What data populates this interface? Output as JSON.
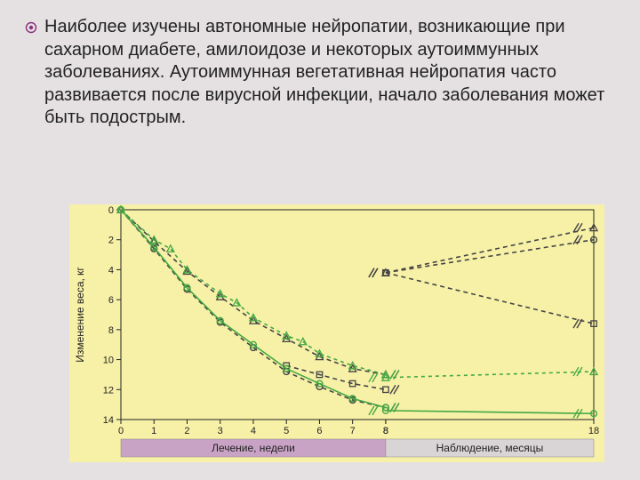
{
  "text": {
    "paragraph": "Наиболее изучены автономные нейропатии, возникающие при сахарном диабете, амилоидозе и некоторых аутоиммунных заболеваниях. Аутоиммунная вегетативная нейропатия часто развивается после вирусной инфекции, начало заболевания может быть подострым."
  },
  "chart": {
    "type": "line",
    "bg_color": "#f7f1a7",
    "plot_bg": "#f7f1a7",
    "axis_color": "#222222",
    "grid_color": "#f7f1a7",
    "tick_fontsize": 11,
    "label_fontsize": 12,
    "y_label": "Изменение веса, кг",
    "x1_label": "Лечение, недели",
    "x2_label": "Наблюдение, месяцы",
    "x1_bar_color": "#c9a3c5",
    "x2_bar_color": "#d9d4d6",
    "y_ticks": [
      0,
      2,
      4,
      6,
      8,
      10,
      12,
      14
    ],
    "x1_ticks": [
      0,
      1,
      2,
      3,
      4,
      5,
      6,
      7,
      8
    ],
    "x2_ticks": [
      8,
      18
    ],
    "ylim": [
      14,
      0
    ],
    "seriesA_circle": {
      "color": "#44a844",
      "dash": "none",
      "marker": "circle",
      "points": [
        [
          0,
          0
        ],
        [
          1,
          2.5
        ],
        [
          2,
          5.2
        ],
        [
          3,
          7.4
        ],
        [
          4,
          9.0
        ],
        [
          5,
          10.6
        ],
        [
          6,
          11.6
        ],
        [
          7,
          12.6
        ],
        [
          8,
          13.2
        ]
      ],
      "obs": [
        [
          8,
          13.4
        ],
        [
          18,
          13.6
        ]
      ]
    },
    "seriesA_triangle": {
      "color": "#44a844",
      "dash": "4,4",
      "marker": "triangle",
      "points": [
        [
          0,
          0
        ],
        [
          1,
          2.0
        ],
        [
          1.5,
          2.6
        ],
        [
          2,
          4.0
        ],
        [
          3,
          5.6
        ],
        [
          3.5,
          6.2
        ],
        [
          4,
          7.2
        ],
        [
          5,
          8.4
        ],
        [
          5.5,
          8.8
        ],
        [
          6,
          9.6
        ],
        [
          7,
          10.4
        ],
        [
          8,
          11.0
        ]
      ],
      "obs": [
        [
          8,
          11.2
        ],
        [
          18,
          10.8
        ]
      ]
    },
    "seriesB_circle": {
      "color": "#444444",
      "dash": "5,4",
      "marker": "circle",
      "points": [
        [
          0,
          0
        ],
        [
          1,
          2.6
        ],
        [
          2,
          5.3
        ],
        [
          3,
          7.5
        ],
        [
          4,
          9.2
        ],
        [
          5,
          10.8
        ],
        [
          6,
          11.8
        ],
        [
          7,
          12.7
        ],
        [
          8,
          13.2
        ]
      ],
      "obs": [
        [
          8,
          4.2
        ],
        [
          18,
          2.0
        ]
      ]
    },
    "seriesB_triangle": {
      "color": "#444444",
      "dash": "5,4",
      "marker": "triangle",
      "points": [
        [
          0,
          0
        ],
        [
          1,
          2.1
        ],
        [
          2,
          4.1
        ],
        [
          3,
          5.8
        ],
        [
          4,
          7.4
        ],
        [
          5,
          8.6
        ],
        [
          6,
          9.8
        ],
        [
          7,
          10.6
        ],
        [
          8,
          11.0
        ]
      ],
      "obs": [
        [
          8,
          4.2
        ],
        [
          18,
          1.2
        ]
      ]
    },
    "seriesC_square": {
      "color": "#444444",
      "dash": "5,4",
      "marker": "square",
      "points": [
        [
          5,
          10.4
        ],
        [
          6,
          11.0
        ],
        [
          7,
          11.6
        ],
        [
          8,
          12.0
        ]
      ],
      "obs": [
        [
          8,
          4.2
        ],
        [
          18,
          7.6
        ]
      ]
    },
    "break_marks": true
  }
}
